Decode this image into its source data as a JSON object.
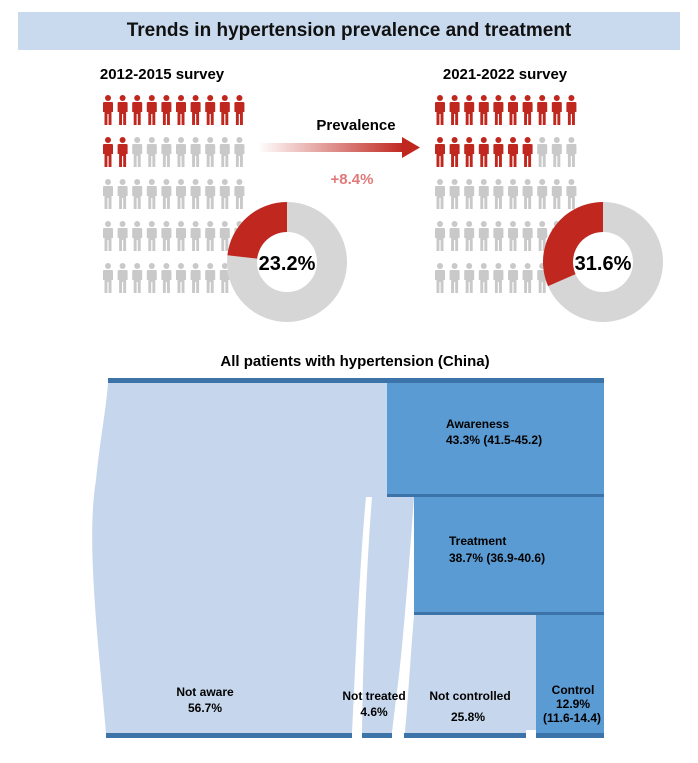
{
  "banner_title": "Trends in hypertension prevalence and treatment",
  "survey_left": {
    "title": "2012-2015 survey",
    "prevalence_pct_label": "23.2%",
    "prevalence_fraction": 0.232
  },
  "survey_right": {
    "title": "2021-2022 survey",
    "prevalence_pct_label": "31.6%",
    "prevalence_fraction": 0.316
  },
  "arrow": {
    "label": "Prevalence",
    "change": "+8.4%"
  },
  "flow_title": "All patients with hypertension (China)",
  "stages": {
    "awareness": {
      "label": "Awareness",
      "value": "43.3% (41.5-45.2)"
    },
    "treatment": {
      "label": "Treatment",
      "value": "38.7% (36.9-40.6)"
    },
    "not_aware": {
      "label": "Not aware",
      "value": "56.7%"
    },
    "not_treated": {
      "label": "Not treated",
      "value": "4.6%"
    },
    "not_controlled": {
      "label": "Not controlled",
      "value": "25.8%"
    },
    "control": {
      "label": "Control",
      "value": "12.9%",
      "ci": "(11.6-14.4)"
    }
  },
  "colors": {
    "banner": "#c9d9ee",
    "person_red": "#c0271f",
    "person_gray": "#c9c9c9",
    "donut_gray": "#d6d6d6",
    "flow_light": "#c6d6ec",
    "flow_dark": "#5b9bd3",
    "flow_border": "#3c73a8"
  },
  "icons": {
    "person": "person-icon",
    "arrow": "right-arrow-icon"
  }
}
